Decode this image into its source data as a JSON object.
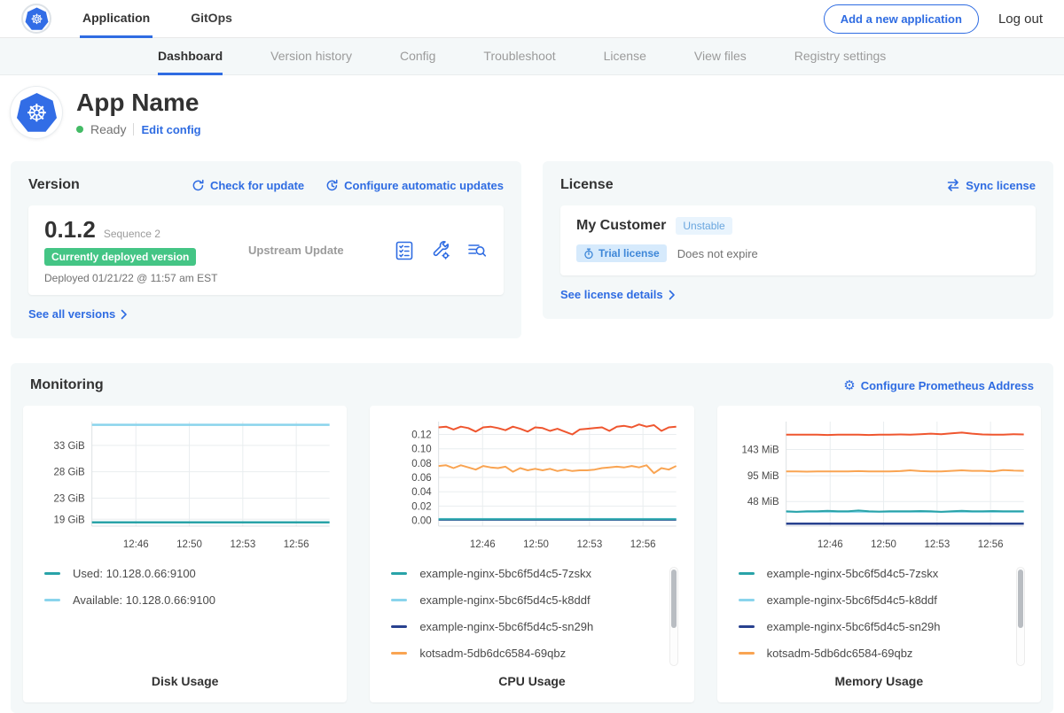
{
  "topnav": {
    "brand": "kubernetes-logo",
    "tabs": [
      {
        "label": "Application",
        "active": true
      },
      {
        "label": "GitOps",
        "active": false
      }
    ],
    "add_app_button": "Add a new application",
    "logout": "Log out"
  },
  "subnav": {
    "tabs": [
      {
        "label": "Dashboard",
        "active": true
      },
      {
        "label": "Version history",
        "active": false
      },
      {
        "label": "Config",
        "active": false
      },
      {
        "label": "Troubleshoot",
        "active": false
      },
      {
        "label": "License",
        "active": false
      },
      {
        "label": "View files",
        "active": false
      },
      {
        "label": "Registry settings",
        "active": false
      }
    ]
  },
  "app_header": {
    "name": "App Name",
    "status": "Ready",
    "edit_config": "Edit config"
  },
  "version": {
    "title": "Version",
    "check_for_update": "Check for update",
    "configure_auto_updates": "Configure automatic updates",
    "version_number": "0.1.2",
    "sequence": "Sequence 2",
    "deployed_badge": "Currently deployed version",
    "deployed_at": "Deployed 01/21/22 @ 11:57 am EST",
    "upstream_update": "Upstream Update",
    "see_all_versions": "See all versions",
    "action_icons": [
      "preflight-checks-icon",
      "config-wrench-icon",
      "view-files-icon"
    ]
  },
  "license": {
    "title": "License",
    "sync_license": "Sync license",
    "customer": "My Customer",
    "channel_badge": "Unstable",
    "type_badge": "Trial license",
    "expiry": "Does not expire",
    "see_details": "See license details"
  },
  "monitoring": {
    "title": "Monitoring",
    "configure_prometheus": "Configure Prometheus Address"
  },
  "colors": {
    "accent_blue": "#2f6ce2",
    "kubernetes_blue": "#326de6",
    "status_green": "#44bb66",
    "deployed_badge_green": "#44c585",
    "trial_badge_bg": "#d6eafc",
    "trial_badge_text": "#3e87d8",
    "channel_badge_bg": "#e9f4fd",
    "channel_badge_text": "#6aa6de",
    "panel_bg": "#f4f8f9"
  },
  "chart_data": [
    {
      "key": "disk",
      "type": "line",
      "title": "Disk Usage",
      "ylim": [
        17.7,
        37.5
      ],
      "yticks": [
        {
          "v": 33,
          "label": "33 GiB"
        },
        {
          "v": 28,
          "label": "28 GiB"
        },
        {
          "v": 23,
          "label": "23 GiB"
        },
        {
          "v": 19,
          "label": "19 GiB"
        }
      ],
      "xticks": [
        {
          "pos": 0.185,
          "label": "12:46"
        },
        {
          "pos": 0.41,
          "label": "12:50"
        },
        {
          "pos": 0.635,
          "label": "12:53"
        },
        {
          "pos": 0.86,
          "label": "12:56"
        }
      ],
      "scrollbar": false,
      "series": [
        {
          "name": "Used: 10.128.0.66:9100",
          "color": "#29a3a8",
          "width": 2.5,
          "values": [
            18.4,
            18.4
          ]
        },
        {
          "name": "Available: 10.128.0.66:9100",
          "color": "#8ad4ec",
          "width": 2.5,
          "values": [
            36.9,
            36.9
          ]
        }
      ]
    },
    {
      "key": "cpu",
      "type": "line",
      "title": "CPU Usage",
      "ylim": [
        -0.008,
        0.138
      ],
      "yticks": [
        {
          "v": 0.12,
          "label": "0.12"
        },
        {
          "v": 0.1,
          "label": "0.10"
        },
        {
          "v": 0.08,
          "label": "0.08"
        },
        {
          "v": 0.06,
          "label": "0.06"
        },
        {
          "v": 0.04,
          "label": "0.04"
        },
        {
          "v": 0.02,
          "label": "0.02"
        },
        {
          "v": 0.0,
          "label": "0.00"
        }
      ],
      "xticks": [
        {
          "pos": 0.185,
          "label": "12:46"
        },
        {
          "pos": 0.41,
          "label": "12:50"
        },
        {
          "pos": 0.635,
          "label": "12:53"
        },
        {
          "pos": 0.86,
          "label": "12:56"
        }
      ],
      "scrollbar": true,
      "series": [
        {
          "name": "example-nginx-5bc6f5d4c5-7zskx",
          "color": "#29a3a8",
          "width": 2,
          "values": [
            0.0015,
            0.0015
          ]
        },
        {
          "name": "example-nginx-5bc6f5d4c5-k8ddf",
          "color": "#8ad4ec",
          "width": 2,
          "values": [
            0.002,
            0.002
          ]
        },
        {
          "name": "example-nginx-5bc6f5d4c5-sn29h",
          "color": "#28418f",
          "width": 2,
          "values": [
            0.0008,
            0.0008
          ]
        },
        {
          "name": "kotsadm-5db6dc6584-69qbz",
          "color": "#f9a452",
          "width": 2,
          "values": [
            0.076,
            0.077,
            0.073,
            0.077,
            0.074,
            0.071,
            0.076,
            0.074,
            0.073,
            0.075,
            0.068,
            0.073,
            0.07,
            0.072,
            0.07,
            0.072,
            0.069,
            0.071,
            0.069,
            0.07,
            0.07,
            0.071,
            0.073,
            0.074,
            0.075,
            0.074,
            0.076,
            0.074,
            0.077,
            0.066,
            0.073,
            0.071,
            0.076
          ]
        },
        {
          "name": "",
          "color": "#ef562f",
          "width": 2,
          "values": [
            0.13,
            0.131,
            0.127,
            0.131,
            0.129,
            0.124,
            0.13,
            0.131,
            0.129,
            0.126,
            0.131,
            0.128,
            0.124,
            0.13,
            0.129,
            0.125,
            0.128,
            0.124,
            0.12,
            0.127,
            0.128,
            0.129,
            0.13,
            0.125,
            0.131,
            0.132,
            0.13,
            0.134,
            0.131,
            0.133,
            0.125,
            0.13,
            0.131
          ]
        }
      ]
    },
    {
      "key": "memory",
      "type": "line",
      "title": "Memory Usage",
      "ylim": [
        3,
        194
      ],
      "yticks": [
        {
          "v": 143,
          "label": "143 MiB"
        },
        {
          "v": 95,
          "label": "95 MiB"
        },
        {
          "v": 48,
          "label": "48 MiB"
        }
      ],
      "xticks": [
        {
          "pos": 0.185,
          "label": "12:46"
        },
        {
          "pos": 0.41,
          "label": "12:50"
        },
        {
          "pos": 0.635,
          "label": "12:53"
        },
        {
          "pos": 0.86,
          "label": "12:56"
        }
      ],
      "scrollbar": true,
      "series": [
        {
          "name": "example-nginx-5bc6f5d4c5-7zskx",
          "color": "#29a3a8",
          "width": 2,
          "values": [
            30,
            29,
            30,
            30,
            31,
            30,
            30,
            31.5,
            30,
            29.5,
            30,
            30,
            30,
            30.5,
            30,
            29,
            30,
            31,
            30,
            30,
            30.5,
            30,
            30,
            30
          ]
        },
        {
          "name": "example-nginx-5bc6f5d4c5-k8ddf",
          "color": "#8ad4ec",
          "width": 2,
          "values": [
            29,
            29
          ]
        },
        {
          "name": "example-nginx-5bc6f5d4c5-sn29h",
          "color": "#28418f",
          "width": 2.5,
          "values": [
            7.5,
            7.5
          ]
        },
        {
          "name": "kotsadm-5db6dc6584-69qbz",
          "color": "#f9a452",
          "width": 2,
          "values": [
            103,
            103,
            102.5,
            103,
            103,
            103,
            103,
            103.5,
            103,
            103,
            103,
            103.5,
            105,
            103.5,
            103,
            103,
            104,
            105,
            104,
            104,
            103,
            105.5,
            104.5,
            104
          ]
        },
        {
          "name": "",
          "color": "#ef562f",
          "width": 2,
          "values": [
            170,
            170,
            170,
            170,
            169.5,
            170,
            170,
            170,
            169.5,
            170,
            170,
            170.5,
            170,
            171,
            172,
            171,
            172.5,
            174,
            172,
            170.5,
            170,
            170,
            171,
            170.5
          ]
        }
      ]
    }
  ]
}
